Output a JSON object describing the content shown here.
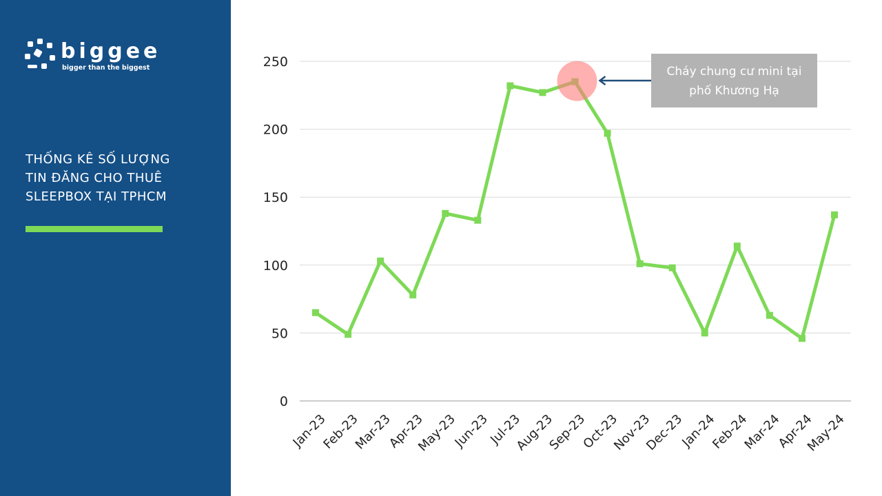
{
  "brand": {
    "name": "biggee",
    "tagline": "bigger than the biggest"
  },
  "slide_title": [
    "THỐNG KÊ SỐ LƯỢNG",
    "TIN ĐĂNG CHO THUÊ",
    "SLEEPBOX TẠI TPHCM"
  ],
  "chart_data": {
    "type": "line",
    "categories": [
      "Jan-23",
      "Feb-23",
      "Mar-23",
      "Apr-23",
      "May-23",
      "Jun-23",
      "Jul-23",
      "Aug-23",
      "Sep-23",
      "Oct-23",
      "Nov-23",
      "Dec-23",
      "Jan-24",
      "Feb-24",
      "Mar-24",
      "Apr-24",
      "May-24"
    ],
    "values": [
      65,
      49,
      103,
      78,
      138,
      133,
      232,
      227,
      235,
      197,
      101,
      98,
      50,
      114,
      63,
      46,
      137
    ],
    "color": "#7ed957",
    "ylim": [
      0,
      250
    ],
    "yticks": [
      0,
      50,
      100,
      150,
      200,
      250
    ],
    "grid": true,
    "annotation": "Cháy chung cư mini tại phố Khương Hạ"
  }
}
